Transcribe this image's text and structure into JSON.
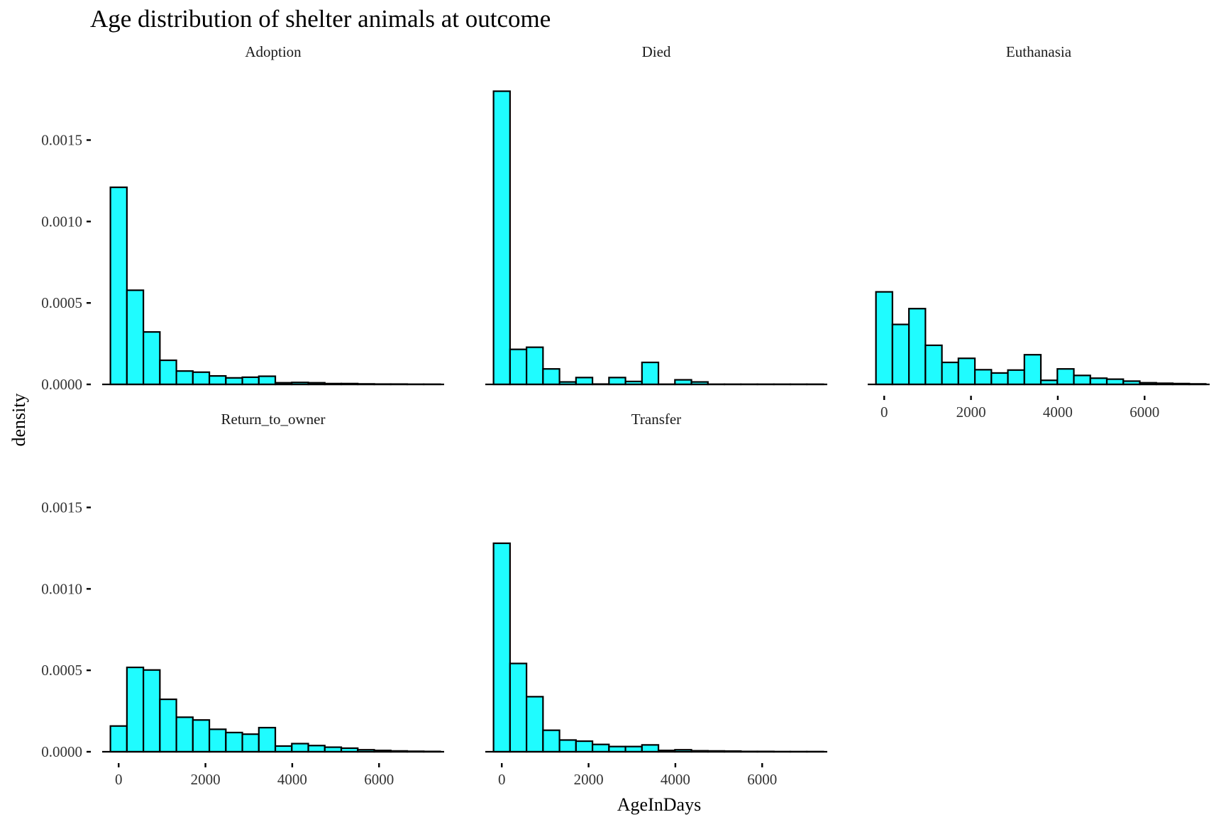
{
  "chart_data": {
    "type": "bar",
    "title": "Age distribution of shelter animals at outcome",
    "xlabel": "AgeInDays",
    "ylabel": "density",
    "bin_width": 380,
    "x_first_bin_start": -190,
    "xlim": [
      -380,
      7500
    ],
    "ylim": [
      0,
      0.00182
    ],
    "x_ticks": [
      0,
      2000,
      4000,
      6000
    ],
    "x_tick_labels": [
      "0",
      "2000",
      "4000",
      "6000"
    ],
    "y_ticks": [
      0,
      0.0005,
      0.001,
      0.0015
    ],
    "y_tick_labels": [
      "0.0000",
      "0.0005",
      "0.0010",
      "0.0015"
    ],
    "bar_fill": "#1ffcff",
    "bar_stroke": "#000000",
    "grid": false,
    "facets": [
      {
        "name": "Adoption",
        "values": [
          0.00121,
          0.000578,
          0.000322,
          0.000148,
          8.2e-05,
          7.5e-05,
          5.2e-05,
          4e-05,
          4.4e-05,
          5e-05,
          1e-05,
          1.2e-05,
          1e-05,
          5e-06,
          5e-06,
          3e-06,
          2e-06,
          2e-06,
          1e-06,
          1e-06
        ]
      },
      {
        "name": "Died",
        "values": [
          0.0018,
          0.000215,
          0.000228,
          9.5e-05,
          1.5e-05,
          4.2e-05,
          2e-06,
          4.2e-05,
          1.8e-05,
          0.000135,
          1e-06,
          2.8e-05,
          1.5e-05,
          1e-06,
          1e-06,
          1e-06,
          1e-06,
          1e-06,
          1e-06,
          1e-06
        ]
      },
      {
        "name": "Euthanasia",
        "values": [
          0.000568,
          0.000368,
          0.000465,
          0.00024,
          0.000135,
          0.00016,
          9e-05,
          7e-05,
          8.8e-05,
          0.000182,
          2.5e-05,
          9.5e-05,
          5.5e-05,
          3.8e-05,
          3.2e-05,
          2e-05,
          1e-05,
          7e-06,
          5e-06,
          3e-06
        ]
      },
      {
        "name": "Return_to_owner",
        "values": [
          0.000158,
          0.000518,
          0.000502,
          0.000322,
          0.000212,
          0.000195,
          0.000138,
          0.000118,
          0.000108,
          0.000148,
          3.5e-05,
          5e-05,
          3.8e-05,
          2.8e-05,
          2.2e-05,
          1.2e-05,
          8e-06,
          5e-06,
          3e-06,
          2e-06
        ]
      },
      {
        "name": "Transfer",
        "values": [
          0.00128,
          0.000542,
          0.000338,
          0.000132,
          7.2e-05,
          6.5e-05,
          4.5e-05,
          3.2e-05,
          3.2e-05,
          4.2e-05,
          8e-06,
          1.2e-05,
          6e-06,
          5e-06,
          4e-06,
          2e-06,
          2e-06,
          1e-06,
          1e-06,
          1e-06
        ]
      }
    ]
  }
}
